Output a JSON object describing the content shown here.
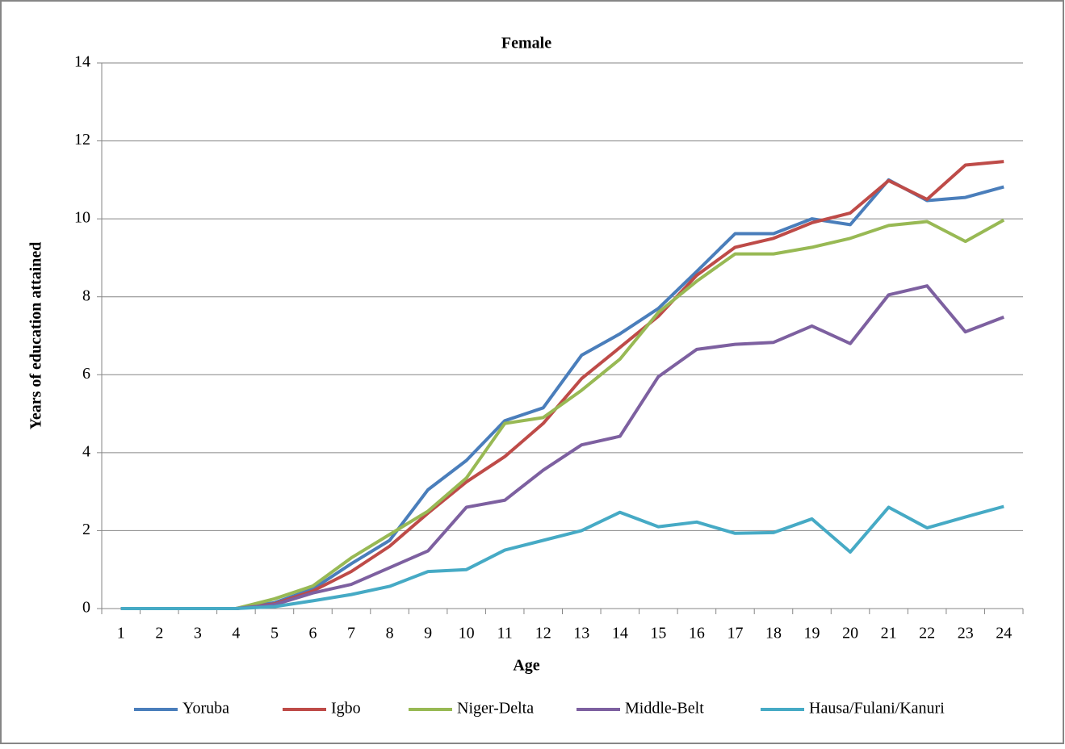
{
  "chart_data": {
    "type": "line",
    "title": "Female",
    "x_label": "Age",
    "y_label": "Years of education attained",
    "categories": [
      1,
      2,
      3,
      4,
      5,
      6,
      7,
      8,
      9,
      10,
      11,
      12,
      13,
      14,
      15,
      16,
      17,
      18,
      19,
      20,
      21,
      22,
      23,
      24
    ],
    "ylim": [
      0,
      14
    ],
    "yticks": [
      0,
      2,
      4,
      6,
      8,
      10,
      12,
      14
    ],
    "grid": true,
    "legend": "bottom",
    "series": [
      {
        "name": "Yoruba",
        "color": "#4a7ebb",
        "values": [
          0,
          0,
          0,
          0,
          0.15,
          0.5,
          1.15,
          1.75,
          3.05,
          3.8,
          4.82,
          5.15,
          6.5,
          7.05,
          7.7,
          8.65,
          9.62,
          9.62,
          10.0,
          9.85,
          11.0,
          10.47,
          10.55,
          10.82
        ]
      },
      {
        "name": "Igbo",
        "color": "#be4b48",
        "values": [
          0,
          0,
          0,
          0,
          0.12,
          0.45,
          0.95,
          1.6,
          2.45,
          3.25,
          3.9,
          4.75,
          5.9,
          6.7,
          7.5,
          8.55,
          9.27,
          9.5,
          9.9,
          10.15,
          10.98,
          10.5,
          11.38,
          11.47
        ]
      },
      {
        "name": "Niger-Delta",
        "color": "#98b954",
        "values": [
          0,
          0,
          0,
          0,
          0.25,
          0.58,
          1.3,
          1.9,
          2.5,
          3.35,
          4.75,
          4.9,
          5.6,
          6.4,
          7.6,
          8.4,
          9.1,
          9.1,
          9.27,
          9.5,
          9.83,
          9.93,
          9.42,
          9.97
        ]
      },
      {
        "name": "Middle-Belt",
        "color": "#7d60a0",
        "values": [
          0,
          0,
          0,
          0,
          0.1,
          0.4,
          0.62,
          1.05,
          1.48,
          2.6,
          2.78,
          3.55,
          4.2,
          4.42,
          5.95,
          6.65,
          6.78,
          6.83,
          7.25,
          6.8,
          8.05,
          8.28,
          7.1,
          7.48
        ]
      },
      {
        "name": "Hausa/Fulani/Kanuri",
        "color": "#46aac5",
        "values": [
          0,
          0,
          0,
          0,
          0.05,
          0.2,
          0.36,
          0.57,
          0.95,
          1.0,
          1.5,
          1.75,
          2.0,
          2.47,
          2.1,
          2.22,
          1.93,
          1.95,
          2.3,
          1.45,
          2.6,
          2.07,
          2.35,
          2.62
        ]
      }
    ]
  }
}
